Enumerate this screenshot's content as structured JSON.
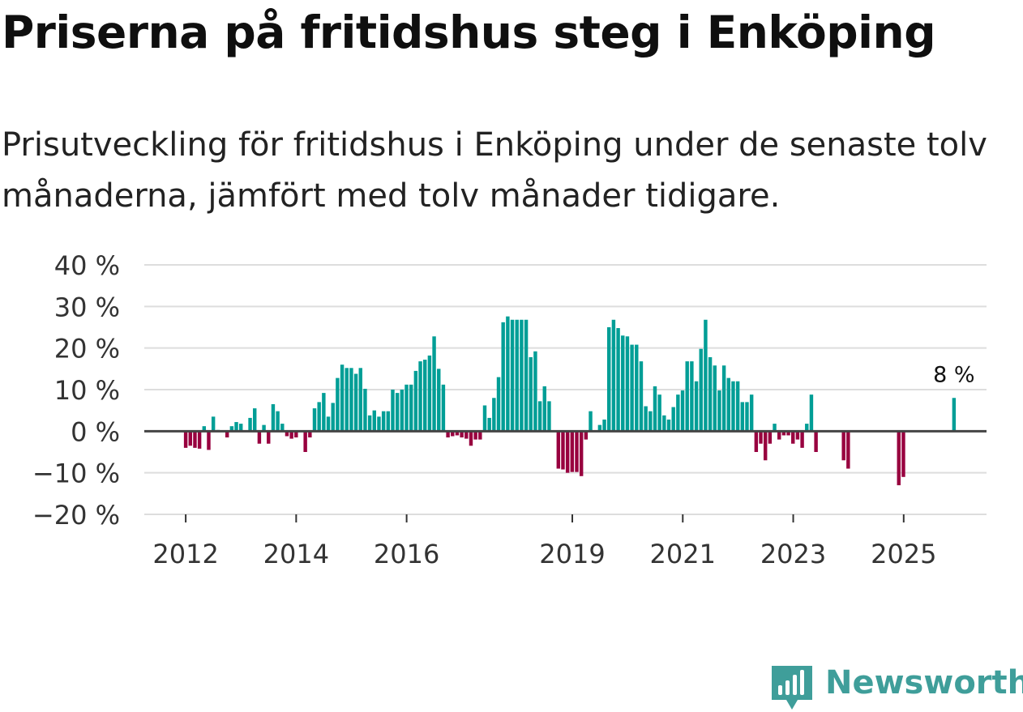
{
  "title": "Priserna på fritidshus steg i Enköping",
  "subtitle": "Prisutveckling för fritidshus i Enköping under de senaste tolv månaderna, jämfört med tolv månader tidigare.",
  "brand": "Newsworthy",
  "colors": {
    "positive": "#009e96",
    "negative": "#98003f",
    "grid": "#dddddd",
    "zero_line": "#444444",
    "brand": "#3f9e9a"
  },
  "chart_data": {
    "type": "bar",
    "title": "Priserna på fritidshus steg i Enköping",
    "xlabel": "",
    "ylabel": "",
    "ylim": [
      -20,
      40
    ],
    "yticks": [
      40,
      30,
      20,
      10,
      0,
      -10,
      -20
    ],
    "ytick_labels": [
      "40 %",
      "30 %",
      "20 %",
      "10 %",
      "0 %",
      "−10 %",
      "−20 %"
    ],
    "xticks": [
      2012,
      2014,
      2016,
      2019,
      2021,
      2023,
      2025
    ],
    "xtick_labels": [
      "2012",
      "2014",
      "2016",
      "2019",
      "2021",
      "2023",
      "2025"
    ],
    "x_start": 2011.25,
    "x_end": 2026.5,
    "grid": true,
    "last_value_label": "8 %",
    "series": [
      {
        "name": "Prisutveckling",
        "start_year": 2012,
        "step": 0.0833,
        "values": [
          -4,
          -3.5,
          -4,
          -4.2,
          1.2,
          -4.5,
          3.5,
          0.3,
          0,
          -1.5,
          1.2,
          2.2,
          1.8,
          0,
          3.2,
          5.5,
          -3,
          1.5,
          -3,
          6.5,
          4.8,
          1.8,
          -1.2,
          -1.8,
          -1.5,
          0,
          -5,
          -1.5,
          5.5,
          7,
          9.2,
          3.5,
          6.8,
          12.8,
          16,
          15.2,
          15.2,
          13.8,
          15.2,
          10.2,
          3.8,
          5,
          3.5,
          4.8,
          4.8,
          10,
          9.2,
          10,
          11.2,
          11.2,
          14.5,
          16.8,
          17.2,
          18.2,
          22.8,
          15,
          11.2,
          -1.5,
          -1.2,
          -1,
          -1.5,
          -1.8,
          -3.5,
          -2,
          -2,
          6.2,
          3.2,
          8,
          13,
          26.2,
          27.6,
          26.8,
          26.8,
          26.8,
          26.8,
          17.8,
          19.2,
          7.2,
          10.8,
          7.2,
          0,
          -9,
          -9.2,
          -10,
          -9.8,
          -9.8,
          -10.8,
          -2,
          4.8,
          0,
          1.5,
          2.8,
          25,
          26.8,
          24.8,
          23,
          22.8,
          20.8,
          20.8,
          16.8,
          6,
          4.8,
          10.8,
          8.8,
          3.8,
          2.8,
          5.8,
          8.8,
          9.8,
          16.8,
          16.8,
          12,
          19.8,
          26.8,
          17.8,
          15.8,
          9.8,
          15.8,
          12.8,
          12,
          12,
          7,
          7,
          8.8,
          -5,
          -3,
          -7,
          -3,
          1.8,
          -2,
          -1,
          -1,
          -3,
          -2,
          -4,
          1.8,
          8.8,
          -5,
          0,
          0,
          0,
          0,
          0,
          -7,
          -9,
          0,
          0,
          0,
          0,
          0,
          0,
          0,
          0,
          0,
          0,
          -13,
          -11,
          0,
          0,
          0,
          0,
          0,
          0,
          0,
          0,
          0,
          0,
          8
        ]
      }
    ]
  }
}
